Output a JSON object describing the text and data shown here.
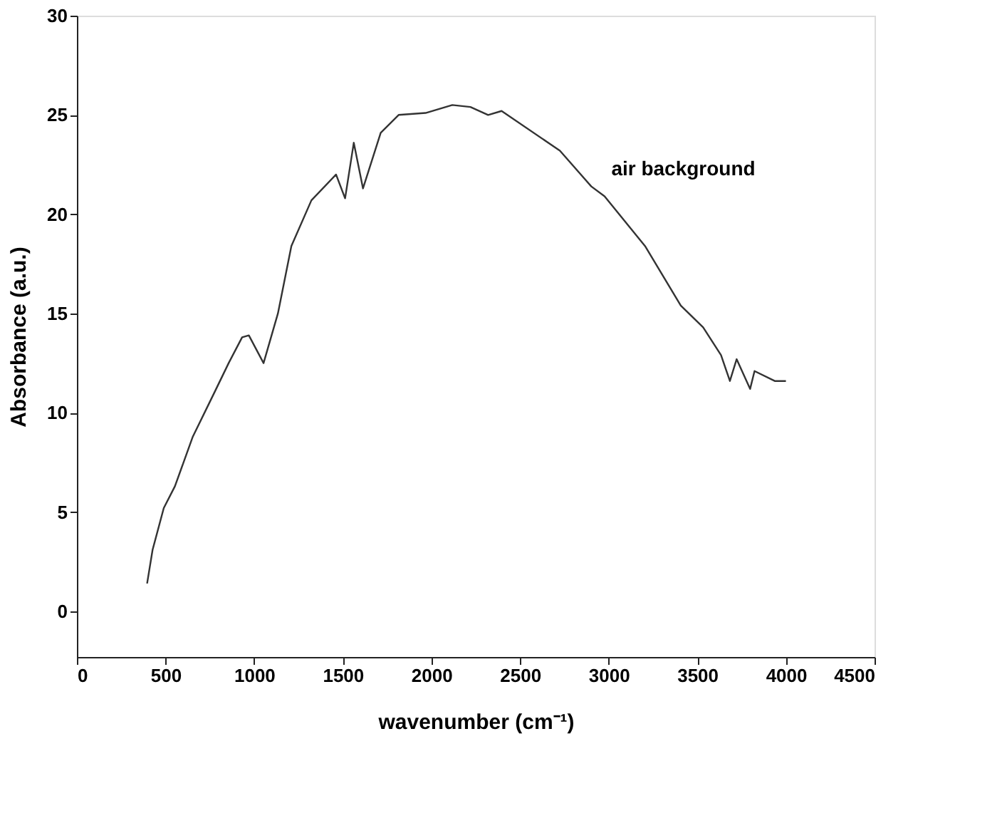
{
  "chart_data": {
    "type": "line",
    "xlabel": "wavenumber (cm⁻¹)",
    "ylabel": "Absorbance (a.u.)",
    "x": [
      396,
      427,
      490,
      553,
      654,
      780,
      856,
      932,
      970,
      1053,
      1134,
      1210,
      1323,
      1462,
      1513,
      1562,
      1614,
      1714,
      1815,
      1967,
      2118,
      2220,
      2320,
      2396,
      2725,
      2902,
      2977,
      3205,
      3407,
      3533,
      3634,
      3684,
      3722,
      3798,
      3823,
      3937,
      4000
    ],
    "series": [
      {
        "color": "#333333",
        "values": [
          1.4,
          3.1,
          5.2,
          6.3,
          8.8,
          11.1,
          12.5,
          13.8,
          13.9,
          12.5,
          15.0,
          18.4,
          20.7,
          22.0,
          20.8,
          23.6,
          21.3,
          24.1,
          25.0,
          25.1,
          25.5,
          25.4,
          25.0,
          25.2,
          23.2,
          21.4,
          20.9,
          18.4,
          15.4,
          14.3,
          12.9,
          11.6,
          12.7,
          11.2,
          12.1,
          11.6,
          11.6
        ]
      }
    ],
    "xlim": [
      0,
      4500
    ],
    "xticks": [
      0,
      500,
      1000,
      1500,
      2000,
      2500,
      3000,
      3500,
      4000,
      4500
    ],
    "ylim": [
      -2.3,
      30
    ],
    "yticks": [
      0,
      5,
      10,
      15,
      20,
      25,
      30
    ],
    "grid": false,
    "marker": "none",
    "line_style": "solid",
    "annotations": [
      "air background"
    ]
  }
}
